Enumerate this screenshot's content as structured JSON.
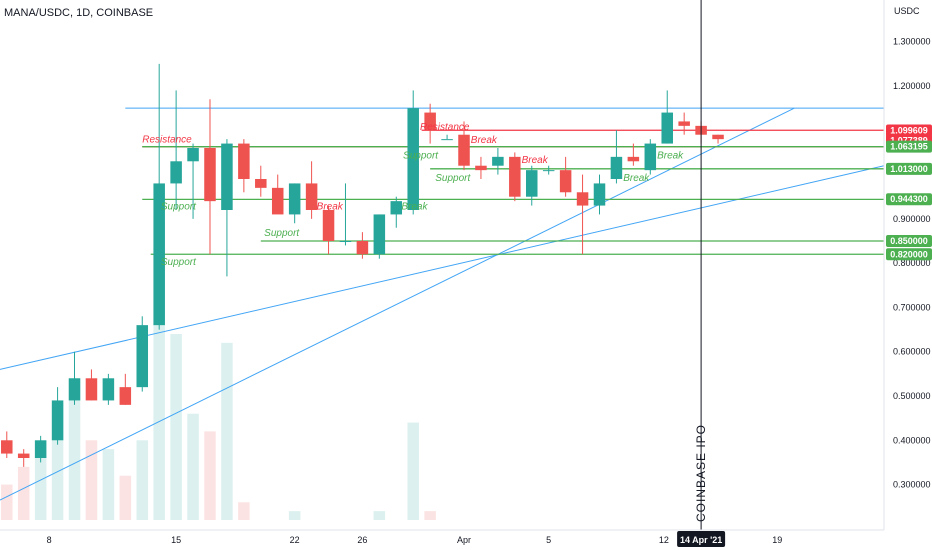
{
  "chart_data": {
    "type": "candlestick",
    "title": "MANA/USDC, 1D, COINBASE",
    "currency": "USDC",
    "y_ticks": [
      "1.300000",
      "1.200000",
      "0.900000",
      "0.800000",
      "0.700000",
      "0.600000",
      "0.500000",
      "0.400000",
      "0.300000"
    ],
    "y_tick_values": [
      1.3,
      1.2,
      0.9,
      0.8,
      0.7,
      0.6,
      0.5,
      0.4,
      0.3
    ],
    "ylim": [
      0.22,
      1.34
    ],
    "x_ticks": [
      {
        "label": "8",
        "idx": 2.5
      },
      {
        "label": "15",
        "idx": 10
      },
      {
        "label": "22",
        "idx": 17
      },
      {
        "label": "26",
        "idx": 21
      },
      {
        "label": "Apr",
        "idx": 27
      },
      {
        "label": "5",
        "idx": 32
      },
      {
        "label": "12",
        "idx": 38.8
      },
      {
        "label": "19",
        "idx": 45.5
      }
    ],
    "xlim": [
      -0.4,
      51.8
    ],
    "current_date_label": "14 Apr '21",
    "current_date_idx": 41,
    "ipo_label": "COINBASE IPO",
    "colors": {
      "up": "#26a69a",
      "down": "#ef5350",
      "support": "#4caf50",
      "resistance": "#f23645",
      "trend": "#42a5f5"
    },
    "candles": [
      {
        "o": 0.4,
        "h": 0.42,
        "l": 0.36,
        "c": 0.37
      },
      {
        "o": 0.37,
        "h": 0.38,
        "l": 0.34,
        "c": 0.36
      },
      {
        "o": 0.36,
        "h": 0.41,
        "l": 0.35,
        "c": 0.4
      },
      {
        "o": 0.4,
        "h": 0.52,
        "l": 0.39,
        "c": 0.49
      },
      {
        "o": 0.49,
        "h": 0.6,
        "l": 0.48,
        "c": 0.54
      },
      {
        "o": 0.54,
        "h": 0.56,
        "l": 0.49,
        "c": 0.49
      },
      {
        "o": 0.49,
        "h": 0.55,
        "l": 0.48,
        "c": 0.54
      },
      {
        "o": 0.52,
        "h": 0.55,
        "l": 0.48,
        "c": 0.48
      },
      {
        "o": 0.52,
        "h": 0.68,
        "l": 0.51,
        "c": 0.66
      },
      {
        "o": 0.66,
        "h": 1.25,
        "l": 0.65,
        "c": 0.98
      },
      {
        "o": 0.98,
        "h": 1.19,
        "l": 0.92,
        "c": 1.03
      },
      {
        "o": 1.03,
        "h": 1.07,
        "l": 0.9,
        "c": 1.06
      },
      {
        "o": 1.06,
        "h": 1.17,
        "l": 0.82,
        "c": 0.94
      },
      {
        "o": 0.92,
        "h": 1.08,
        "l": 0.77,
        "c": 1.07
      },
      {
        "o": 1.07,
        "h": 1.08,
        "l": 0.96,
        "c": 0.99
      },
      {
        "o": 0.99,
        "h": 1.02,
        "l": 0.95,
        "c": 0.97
      },
      {
        "o": 0.97,
        "h": 1.0,
        "l": 0.92,
        "c": 0.91
      },
      {
        "o": 0.91,
        "h": 0.98,
        "l": 0.89,
        "c": 0.98
      },
      {
        "o": 0.98,
        "h": 1.03,
        "l": 0.9,
        "c": 0.92
      },
      {
        "o": 0.92,
        "h": 0.93,
        "l": 0.82,
        "c": 0.85
      },
      {
        "o": 0.85,
        "h": 0.98,
        "l": 0.84,
        "c": 0.85
      },
      {
        "o": 0.85,
        "h": 0.87,
        "l": 0.81,
        "c": 0.82
      },
      {
        "o": 0.82,
        "h": 0.91,
        "l": 0.81,
        "c": 0.91
      },
      {
        "o": 0.91,
        "h": 0.95,
        "l": 0.88,
        "c": 0.94
      },
      {
        "o": 0.92,
        "h": 1.19,
        "l": 0.91,
        "c": 1.15
      },
      {
        "o": 1.14,
        "h": 1.16,
        "l": 1.07,
        "c": 1.1
      },
      {
        "o": 1.08,
        "h": 1.09,
        "l": 1.08,
        "c": 1.08
      },
      {
        "o": 1.09,
        "h": 1.12,
        "l": 1.01,
        "c": 1.02
      },
      {
        "o": 1.02,
        "h": 1.04,
        "l": 0.99,
        "c": 1.01
      },
      {
        "o": 1.02,
        "h": 1.06,
        "l": 1.0,
        "c": 1.04
      },
      {
        "o": 1.04,
        "h": 1.05,
        "l": 0.94,
        "c": 0.95
      },
      {
        "o": 0.95,
        "h": 1.02,
        "l": 0.93,
        "c": 1.01
      },
      {
        "o": 1.01,
        "h": 1.02,
        "l": 1.0,
        "c": 1.01
      },
      {
        "o": 1.01,
        "h": 1.04,
        "l": 0.95,
        "c": 0.96
      },
      {
        "o": 0.96,
        "h": 1.0,
        "l": 0.82,
        "c": 0.93
      },
      {
        "o": 0.93,
        "h": 1.0,
        "l": 0.91,
        "c": 0.98
      },
      {
        "o": 0.99,
        "h": 1.1,
        "l": 0.98,
        "c": 1.04
      },
      {
        "o": 1.04,
        "h": 1.07,
        "l": 1.02,
        "c": 1.03
      },
      {
        "o": 1.01,
        "h": 1.08,
        "l": 1.0,
        "c": 1.07
      },
      {
        "o": 1.07,
        "h": 1.19,
        "l": 1.07,
        "c": 1.14
      },
      {
        "o": 1.12,
        "h": 1.14,
        "l": 1.09,
        "c": 1.11
      },
      {
        "o": 1.11,
        "h": 1.12,
        "l": 1.07,
        "c": 1.09
      },
      {
        "o": 1.09,
        "h": 1.09,
        "l": 1.07,
        "c": 1.08
      }
    ],
    "volumes": [
      0.3,
      0.34,
      0.37,
      0.48,
      0.54,
      0.4,
      0.38,
      0.32,
      0.4,
      0.9,
      0.64,
      0.46,
      0.42,
      0.62,
      0.26,
      0.22,
      0.2,
      0.24,
      0.2,
      0.18,
      0.2,
      0.16,
      0.24,
      0.2,
      0.44,
      0.24,
      0.2,
      0.18,
      0.16,
      0.16,
      0.14,
      0.12,
      0.12,
      0.14,
      0.14,
      0.12,
      0.14,
      0.18,
      0.14,
      0.14,
      0.14,
      0.1,
      0.08
    ],
    "levels": [
      {
        "value": 1.0996,
        "label": "1.099609",
        "kind": "resistance"
      },
      {
        "value": 1.0774,
        "label": "1.077389",
        "kind": "resistance"
      },
      {
        "value": 1.0632,
        "label": "1.063195",
        "kind": "support"
      },
      {
        "value": 1.013,
        "label": "1.013000",
        "kind": "support"
      },
      {
        "value": 0.9443,
        "label": "0.944300",
        "kind": "support"
      },
      {
        "value": 0.85,
        "label": "0.850000",
        "kind": "support"
      },
      {
        "value": 0.82,
        "label": "0.820000",
        "kind": "support"
      }
    ],
    "hlines": [
      {
        "y": 1.15,
        "x0": 7.0,
        "x1": 51.8,
        "kind": "trend"
      },
      {
        "y": 1.1,
        "x0": 24.5,
        "x1": 51.8,
        "kind": "resistance"
      },
      {
        "y": 1.063,
        "x0": 8.0,
        "x1": 51.8,
        "kind": "resistance"
      },
      {
        "y": 1.063,
        "x0": 8.0,
        "x1": 51.8,
        "kind": "support"
      },
      {
        "y": 1.013,
        "x0": 25.0,
        "x1": 51.8,
        "kind": "support"
      },
      {
        "y": 0.944,
        "x0": 8.0,
        "x1": 51.8,
        "kind": "support"
      },
      {
        "y": 0.85,
        "x0": 15.0,
        "x1": 51.8,
        "kind": "support"
      },
      {
        "y": 0.82,
        "x0": 8.5,
        "x1": 51.8,
        "kind": "support"
      }
    ],
    "trendlines": [
      {
        "x0": -0.4,
        "y0": 0.56,
        "x1": 51.8,
        "y1": 1.02
      },
      {
        "x0": -0.4,
        "y0": 0.265,
        "x1": 46.5,
        "y1": 1.15
      }
    ],
    "annotations": [
      {
        "text": "Resistance",
        "x": 8.0,
        "y": 1.082,
        "kind": "resistance"
      },
      {
        "text": "Resistance",
        "x": 24.4,
        "y": 1.11,
        "kind": "resistance"
      },
      {
        "text": "Break",
        "x": 27.4,
        "y": 1.08,
        "kind": "resistance"
      },
      {
        "text": "Break",
        "x": 30.4,
        "y": 1.035,
        "kind": "resistance"
      },
      {
        "text": "Break",
        "x": 18.3,
        "y": 0.93,
        "kind": "resistance"
      },
      {
        "text": "Support",
        "x": 23.4,
        "y": 1.045,
        "kind": "support"
      },
      {
        "text": "Support",
        "x": 25.3,
        "y": 0.995,
        "kind": "support"
      },
      {
        "text": "Support",
        "x": 9.1,
        "y": 0.93,
        "kind": "support"
      },
      {
        "text": "Support",
        "x": 15.2,
        "y": 0.87,
        "kind": "support"
      },
      {
        "text": "Support",
        "x": 9.1,
        "y": 0.805,
        "kind": "support"
      },
      {
        "text": "Break",
        "x": 23.3,
        "y": 0.93,
        "kind": "support"
      },
      {
        "text": "Break",
        "x": 36.4,
        "y": 0.995,
        "kind": "support"
      },
      {
        "text": "Break",
        "x": 38.4,
        "y": 1.045,
        "kind": "support"
      }
    ]
  }
}
